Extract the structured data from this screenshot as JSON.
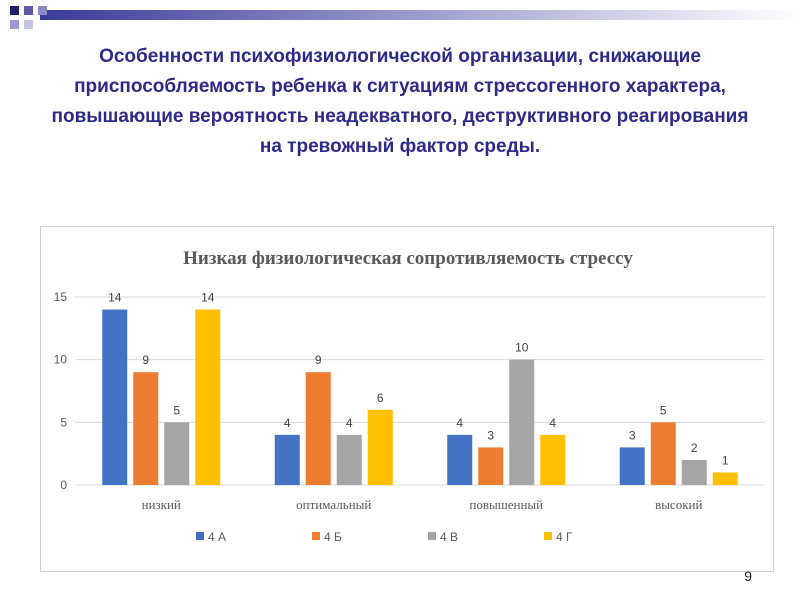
{
  "slide": {
    "title": "Особенности психофизиологической организации, снижающие приспособляемость ребенка к ситуациям стрессогенного характера, повышающие вероятность неадекватного, деструктивного реагирования на тревожный фактор среды.",
    "page_number": "9"
  },
  "colors": {
    "title": "#2e2a8a",
    "header_gradient_start": "#3a3a9a",
    "header_gradient_end": "#ffffff"
  },
  "chart_data": {
    "type": "bar",
    "title": "Низкая физиологическая сопротивляемость стрессу",
    "categories": [
      "низкий",
      "оптимальный",
      "повышенный",
      "высокий"
    ],
    "series": [
      {
        "name": "4 А",
        "values": [
          14,
          4,
          4,
          3
        ],
        "color": "#4472c4"
      },
      {
        "name": "4 Б",
        "values": [
          9,
          9,
          3,
          5
        ],
        "color": "#ed7d31"
      },
      {
        "name": "4 В",
        "values": [
          5,
          4,
          10,
          2
        ],
        "color": "#a5a5a5"
      },
      {
        "name": "4 Г",
        "values": [
          14,
          6,
          4,
          1
        ],
        "color": "#ffc000"
      }
    ],
    "yticks": [
      0,
      5,
      10,
      15
    ],
    "ylim": [
      0,
      15
    ],
    "grid": true,
    "legend_position": "bottom",
    "data_labels": true
  }
}
